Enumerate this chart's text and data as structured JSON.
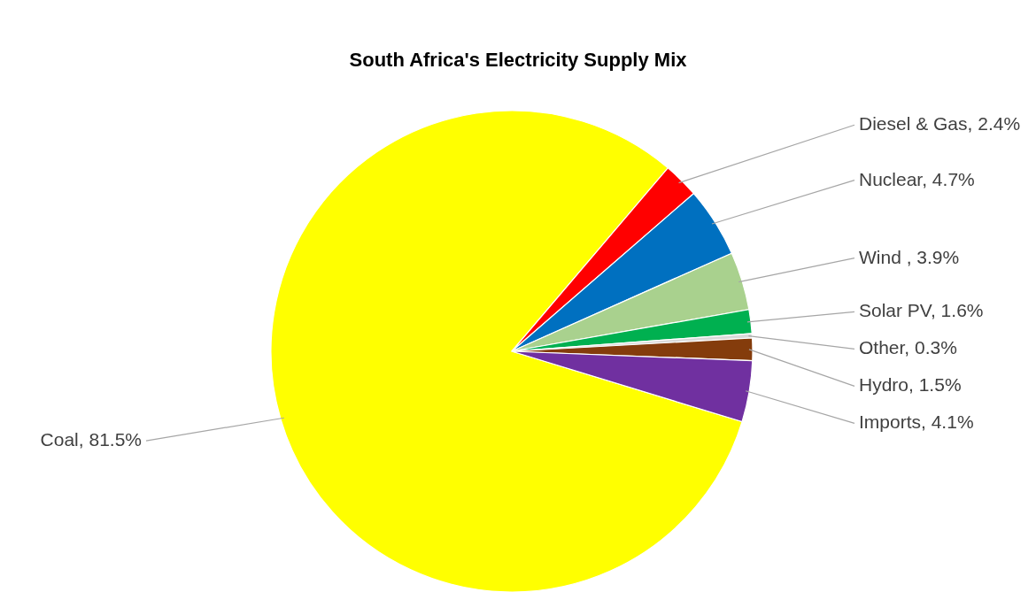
{
  "chart_data": {
    "type": "pie",
    "title": "South Africa's Electricity Supply Mix",
    "categories": [
      "Coal",
      "Diesel & Gas",
      "Nuclear",
      "Wind ",
      "Solar PV",
      "Other",
      "Hydro",
      "Imports"
    ],
    "values": [
      81.5,
      2.4,
      4.7,
      3.9,
      1.6,
      0.3,
      1.5,
      4.1
    ],
    "value_labels": [
      "81.5%",
      "2.4%",
      "4.7%",
      "3.9%",
      "1.6%",
      "0.3%",
      "1.5%",
      "4.1%"
    ],
    "colors": [
      "#ffff00",
      "#ff0000",
      "#0070c0",
      "#a9d18e",
      "#00b050",
      "#d9d9d9",
      "#843c0c",
      "#7030a0"
    ]
  }
}
